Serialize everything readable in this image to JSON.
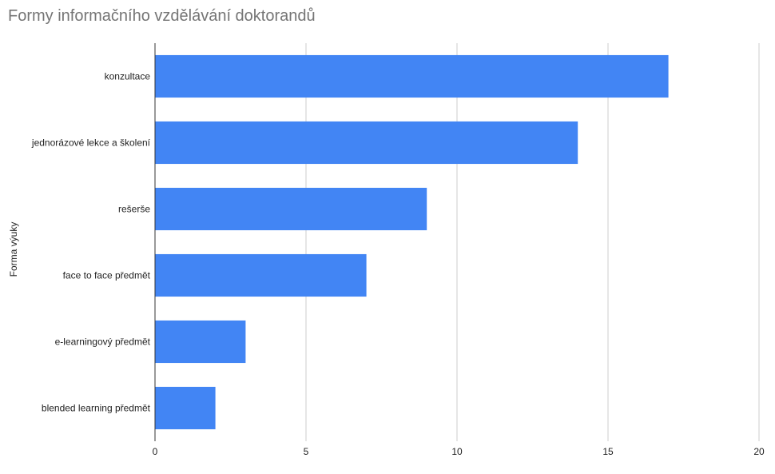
{
  "chart_data": {
    "type": "bar",
    "orientation": "horizontal",
    "title": "Formy informačního vzdělávání doktorandů",
    "xlabel": "",
    "ylabel": "Forma výuky",
    "categories": [
      "konzultace",
      "jednorázové lekce a školení",
      "rešerše",
      "face to face předmět",
      "e-learningový předmět",
      "blended learning předmět"
    ],
    "values": [
      17,
      14,
      9,
      7,
      3,
      2
    ],
    "xlim": [
      0,
      20
    ],
    "xticks": [
      0,
      5,
      10,
      15,
      20
    ],
    "grid": true,
    "legend": "none",
    "bar_color": "#4285f4",
    "grid_color": "#cccccc",
    "axis_color": "#333333"
  }
}
